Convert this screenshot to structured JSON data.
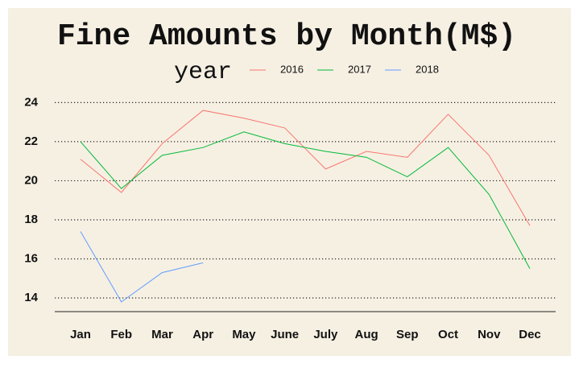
{
  "chart_data": {
    "type": "line",
    "title": "Fine Amounts by Month(M$)",
    "legend_title": "year",
    "legend": "top",
    "categories": [
      "Jan",
      "Feb",
      "Mar",
      "Apr",
      "May",
      "June",
      "July",
      "Aug",
      "Sep",
      "Oct",
      "Nov",
      "Dec"
    ],
    "series": [
      {
        "name": "2016",
        "color": "#f8766d",
        "values": [
          21.1,
          19.4,
          21.9,
          23.6,
          23.2,
          22.7,
          20.6,
          21.5,
          21.2,
          23.4,
          21.3,
          17.7
        ]
      },
      {
        "name": "2017",
        "color": "#00ba38",
        "values": [
          22.0,
          19.6,
          21.3,
          21.7,
          22.5,
          21.9,
          21.5,
          21.2,
          20.2,
          21.7,
          19.3,
          15.5
        ]
      },
      {
        "name": "2018",
        "color": "#619cff",
        "values": [
          17.4,
          13.8,
          15.3,
          15.8,
          null,
          null,
          null,
          null,
          null,
          null,
          null,
          null
        ]
      }
    ],
    "ylim": [
      13.3,
      24.7
    ],
    "yticks": [
      14,
      16,
      18,
      20,
      22,
      24
    ],
    "grid": true
  }
}
